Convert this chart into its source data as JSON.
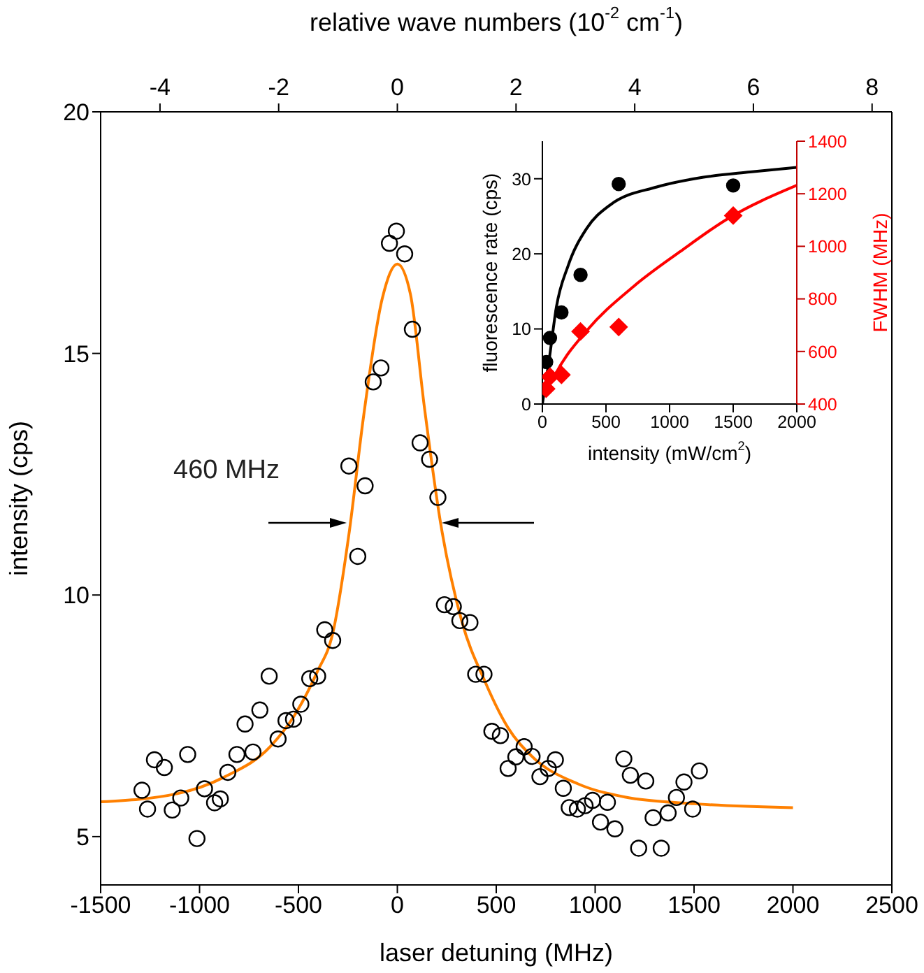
{
  "chart_data": [
    {
      "type": "scatter",
      "xlabel": "laser detuning (MHz)",
      "ylabel": "intensity (cps)",
      "x2label": "relative wave numbers (10$^{-2}$ cm$^{-1}$)",
      "xlim": [
        -1500,
        2500
      ],
      "xticks": [
        -1500,
        -1000,
        -500,
        0,
        500,
        1000,
        1500,
        2000,
        2500
      ],
      "ylim": [
        4,
        20
      ],
      "yticks": [
        5,
        10,
        15,
        20
      ],
      "x2lim": [
        -5,
        8.333
      ],
      "x2ticks": [
        -4,
        -2,
        0,
        2,
        4,
        6,
        8
      ],
      "annotations": [
        "460 MHz"
      ],
      "series": [
        {
          "color": "#000000",
          "marker": "circle",
          "x": [
            -1291,
            -1263,
            -1228,
            -1178,
            -1138,
            -1095,
            -1060,
            -1013,
            -975,
            -924,
            -895,
            -857,
            -811,
            -770,
            -730,
            -695,
            -648,
            -603,
            -563,
            -525,
            -488,
            -443,
            -403,
            -367,
            -327,
            -245,
            -200,
            -163,
            -122,
            -83,
            -40,
            -5,
            37,
            76,
            115,
            163,
            205,
            238,
            283,
            316,
            367,
            396,
            438,
            478,
            521,
            560,
            599,
            641,
            681,
            721,
            763,
            799,
            839,
            869,
            910,
            949,
            987,
            1027,
            1062,
            1100,
            1145,
            1178,
            1220,
            1256,
            1293,
            1334,
            1369,
            1411,
            1449,
            1493,
            1527
          ],
          "values": [
            5.96,
            5.57,
            6.59,
            6.43,
            5.55,
            5.8,
            6.7,
            4.96,
            5.99,
            5.7,
            5.78,
            6.33,
            6.7,
            7.33,
            6.75,
            7.62,
            8.32,
            7.02,
            7.4,
            7.43,
            7.74,
            8.27,
            8.32,
            9.28,
            9.06,
            12.67,
            10.8,
            12.26,
            14.41,
            14.7,
            17.28,
            17.53,
            17.06,
            15.5,
            13.15,
            12.81,
            12.02,
            9.8,
            9.76,
            9.47,
            9.43,
            8.36,
            8.36,
            7.18,
            7.09,
            6.41,
            6.65,
            6.86,
            6.66,
            6.24,
            6.41,
            6.59,
            6,
            5.6,
            5.57,
            5.64,
            5.75,
            5.3,
            5.71,
            5.16,
            6.61,
            6.27,
            4.76,
            6.15,
            5.39,
            4.76,
            5.49,
            5.81,
            6.13,
            5.57,
            6.36
          ]
        },
        {
          "type": "line",
          "color": "#ff8000",
          "marker": "none",
          "line_style": "solid",
          "x": [
            -1500,
            -1112,
            -876,
            -641,
            -523,
            -405,
            -327,
            -245,
            -170,
            -76,
            0,
            66,
            136,
            219,
            325,
            443,
            560,
            678,
            914,
            1150,
            1503,
            2000
          ],
          "values": [
            5.72,
            5.89,
            6.23,
            6.87,
            7.49,
            8.41,
            9.2,
            11.25,
            13.72,
            16.14,
            16.85,
            16.23,
            13.91,
            11.48,
            9.47,
            8.21,
            7.25,
            6.67,
            6.09,
            5.82,
            5.68,
            5.6
          ]
        }
      ]
    },
    {
      "type": "scatter",
      "xlabel": "intensity (mW/cm$^{2}$)",
      "ylabel": "fluorescence rate (cps)",
      "y2label": "FWHM (MHz)",
      "xlim": [
        0,
        2000
      ],
      "xticks": [
        0,
        500,
        1000,
        1500,
        2000
      ],
      "ylim": [
        0,
        35
      ],
      "yticks": [
        0,
        10,
        20,
        30
      ],
      "y2lim": [
        400,
        1400
      ],
      "y2ticks": [
        400,
        600,
        800,
        1000,
        1200,
        1400
      ],
      "series": [
        {
          "color": "#000000",
          "marker": "circle",
          "x": [
            30,
            60,
            150,
            300,
            600,
            1500
          ],
          "values": [
            5.6,
            8.8,
            12.2,
            17.2,
            29.3,
            29.1
          ]
        },
        {
          "color": "#ff0000",
          "marker": "diamond",
          "axis": "y2",
          "x": [
            30,
            60,
            150,
            300,
            600,
            1500
          ],
          "values": [
            458,
            504,
            511,
            676,
            693,
            1117
          ]
        },
        {
          "type": "line",
          "color": "#000000",
          "marker": "none",
          "line_style": "solid",
          "x": [
            0,
            55,
            110,
            202,
            349,
            532,
            899,
            1266,
            1633,
            2000
          ],
          "values": [
            0,
            6.1,
            12.9,
            18.4,
            23.4,
            26.5,
            28.9,
            30.2,
            30.9,
            31.5
          ]
        },
        {
          "type": "line",
          "color": "#ff0000",
          "marker": "none",
          "line_style": "solid",
          "axis": "y2",
          "x": [
            73,
            110,
            349,
            716,
            1083,
            1450,
            2000
          ],
          "values": [
            485,
            520,
            679,
            847,
            980,
            1103,
            1232
          ]
        }
      ]
    }
  ]
}
